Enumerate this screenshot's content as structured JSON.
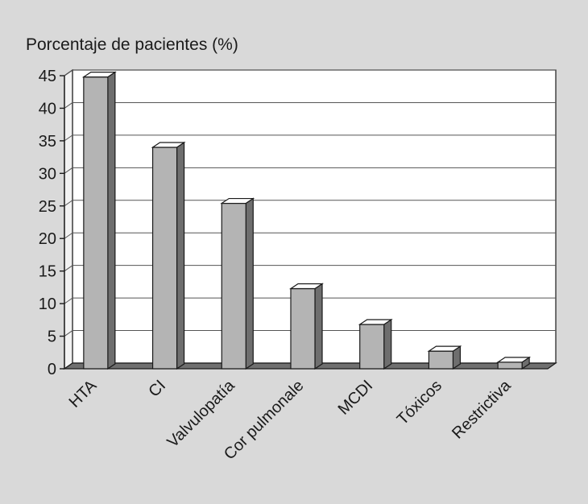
{
  "chart_data": {
    "type": "bar",
    "ylabel": "Porcentaje de pacientes (%)",
    "ylim": [
      0,
      45
    ],
    "yticks": [
      0,
      5,
      10,
      15,
      20,
      25,
      30,
      35,
      40,
      45
    ],
    "grid": true,
    "style": "3d",
    "categories": [
      "HTA",
      "CI",
      "Valvulopatía",
      "Cor pulmonale",
      "MCDI",
      "Tóxicos",
      "Restrictiva"
    ],
    "values": [
      44.8,
      34,
      25.4,
      12.3,
      6.8,
      2.7,
      1.0
    ],
    "colors": {
      "background": "#d9d9d9",
      "plot_area": "#ffffff",
      "bar_front": "#b4b4b4",
      "bar_top": "#ffffff",
      "bar_side": "#6e6e6e",
      "floor": "#707070",
      "grid": "#555555",
      "outline": "#1a1a1a"
    }
  }
}
